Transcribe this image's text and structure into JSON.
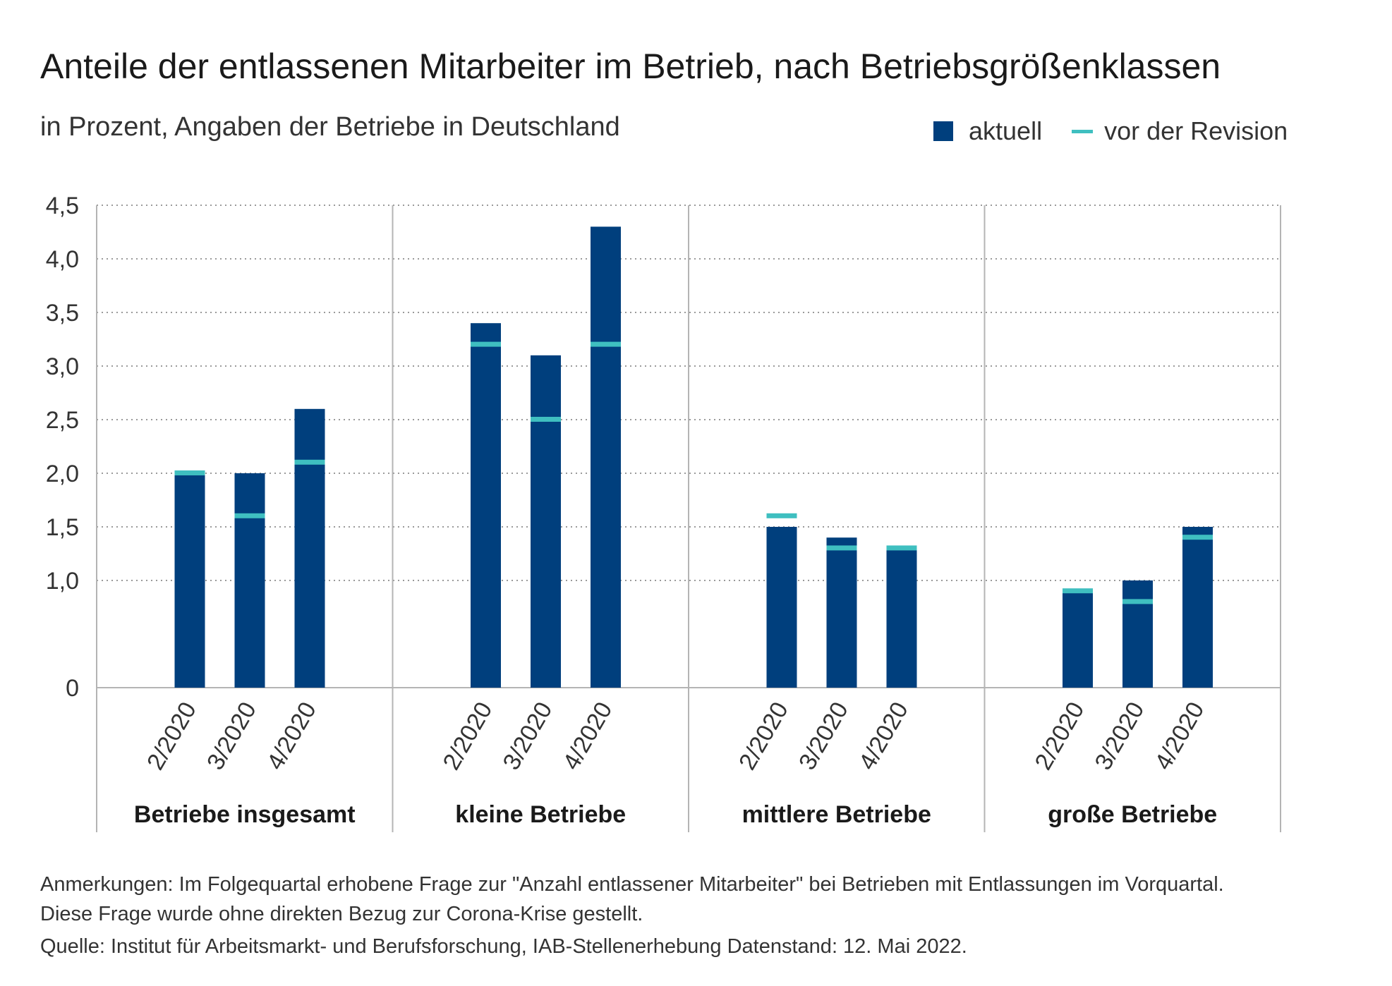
{
  "title": "Anteile der entlassenen Mitarbeiter im Betrieb, nach Betriebsgrößenklassen",
  "subtitle": "in Prozent, Angaben der Betriebe in Deutschland",
  "legend": {
    "current_label": "aktuell",
    "prior_label": "vor der Revision"
  },
  "colors": {
    "current": "#003f7d",
    "prior": "#3fbfc0",
    "grid": "#9a9a9a",
    "separator": "#b4b4b4"
  },
  "chart_data": {
    "type": "bar",
    "ylim": [
      0,
      4.5
    ],
    "yticks": [
      {
        "value": 0,
        "label": "0"
      },
      {
        "value": 1.0,
        "label": "1,0"
      },
      {
        "value": 1.5,
        "label": "1,5"
      },
      {
        "value": 2.0,
        "label": "2,0"
      },
      {
        "value": 2.5,
        "label": "2,5"
      },
      {
        "value": 3.0,
        "label": "3,0"
      },
      {
        "value": 3.5,
        "label": "3,5"
      },
      {
        "value": 4.0,
        "label": "4,0"
      },
      {
        "value": 4.5,
        "label": "4,5"
      }
    ],
    "grid": true,
    "groups": [
      {
        "name": "Betriebe insgesamt",
        "categories": [
          "2/2020",
          "3/2020",
          "4/2020"
        ],
        "current": [
          2.0,
          2.0,
          2.6
        ],
        "prior": [
          2.0,
          1.6,
          2.1
        ]
      },
      {
        "name": "kleine Betriebe",
        "categories": [
          "2/2020",
          "3/2020",
          "4/2020"
        ],
        "current": [
          3.4,
          3.1,
          4.3
        ],
        "prior": [
          3.2,
          2.5,
          3.2
        ]
      },
      {
        "name": "mittlere Betriebe",
        "categories": [
          "2/2020",
          "3/2020",
          "4/2020"
        ],
        "current": [
          1.5,
          1.4,
          1.3
        ],
        "prior": [
          1.6,
          1.3,
          1.3
        ]
      },
      {
        "name": "große Betriebe",
        "categories": [
          "2/2020",
          "3/2020",
          "4/2020"
        ],
        "current": [
          0.9,
          1.0,
          1.5
        ],
        "prior": [
          0.9,
          0.8,
          1.4
        ]
      }
    ]
  },
  "notes": {
    "line1": "Anmerkungen: Im Folgequartal erhobene Frage zur \"Anzahl entlassener Mitarbeiter\" bei Betrieben mit Entlassungen im Vorquartal.",
    "line2": "Diese Frage wurde ohne direkten Bezug zur Corona-Krise gestellt.",
    "source": "Quelle: Institut für Arbeitsmarkt- und Berufsforschung, IAB-Stellenerhebung Datenstand: 12. Mai 2022."
  }
}
